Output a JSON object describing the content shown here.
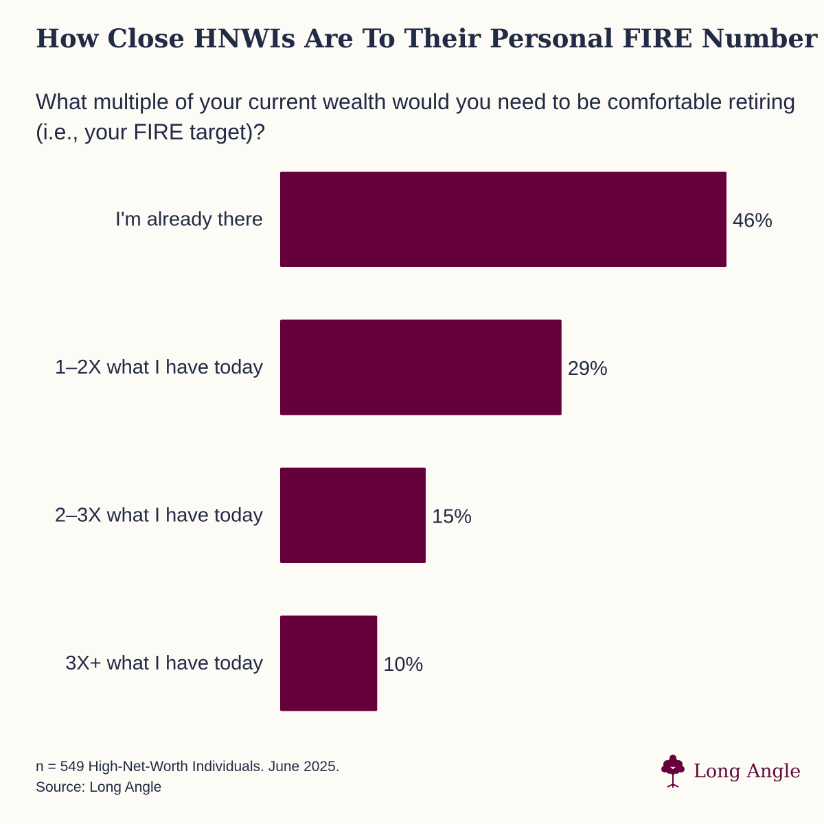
{
  "title": "How Close HNWIs Are To Their Personal FIRE Number",
  "subtitle": "What multiple of your current wealth would you need to be comfortable retiring (i.e., your FIRE target)?",
  "chart_data": {
    "type": "bar",
    "orientation": "horizontal",
    "categories": [
      "I'm already there",
      "1–2X what I have today",
      "2–3X what I have today",
      "3X+ what I have today"
    ],
    "values": [
      46,
      29,
      15,
      10
    ],
    "value_labels": [
      "46%",
      "29%",
      "15%",
      "10%"
    ],
    "bar_color": "#65003a",
    "grid": false,
    "legend": "none"
  },
  "footer": {
    "note": "n = 549 High-Net-Worth Individuals. June 2025.",
    "source": "Source: Long Angle"
  },
  "logo": {
    "text": "Long Angle",
    "icon": "tree-icon",
    "color": "#65003a"
  },
  "colors": {
    "background": "#fdfbf6",
    "text": "#222b45",
    "accent": "#65003a"
  }
}
